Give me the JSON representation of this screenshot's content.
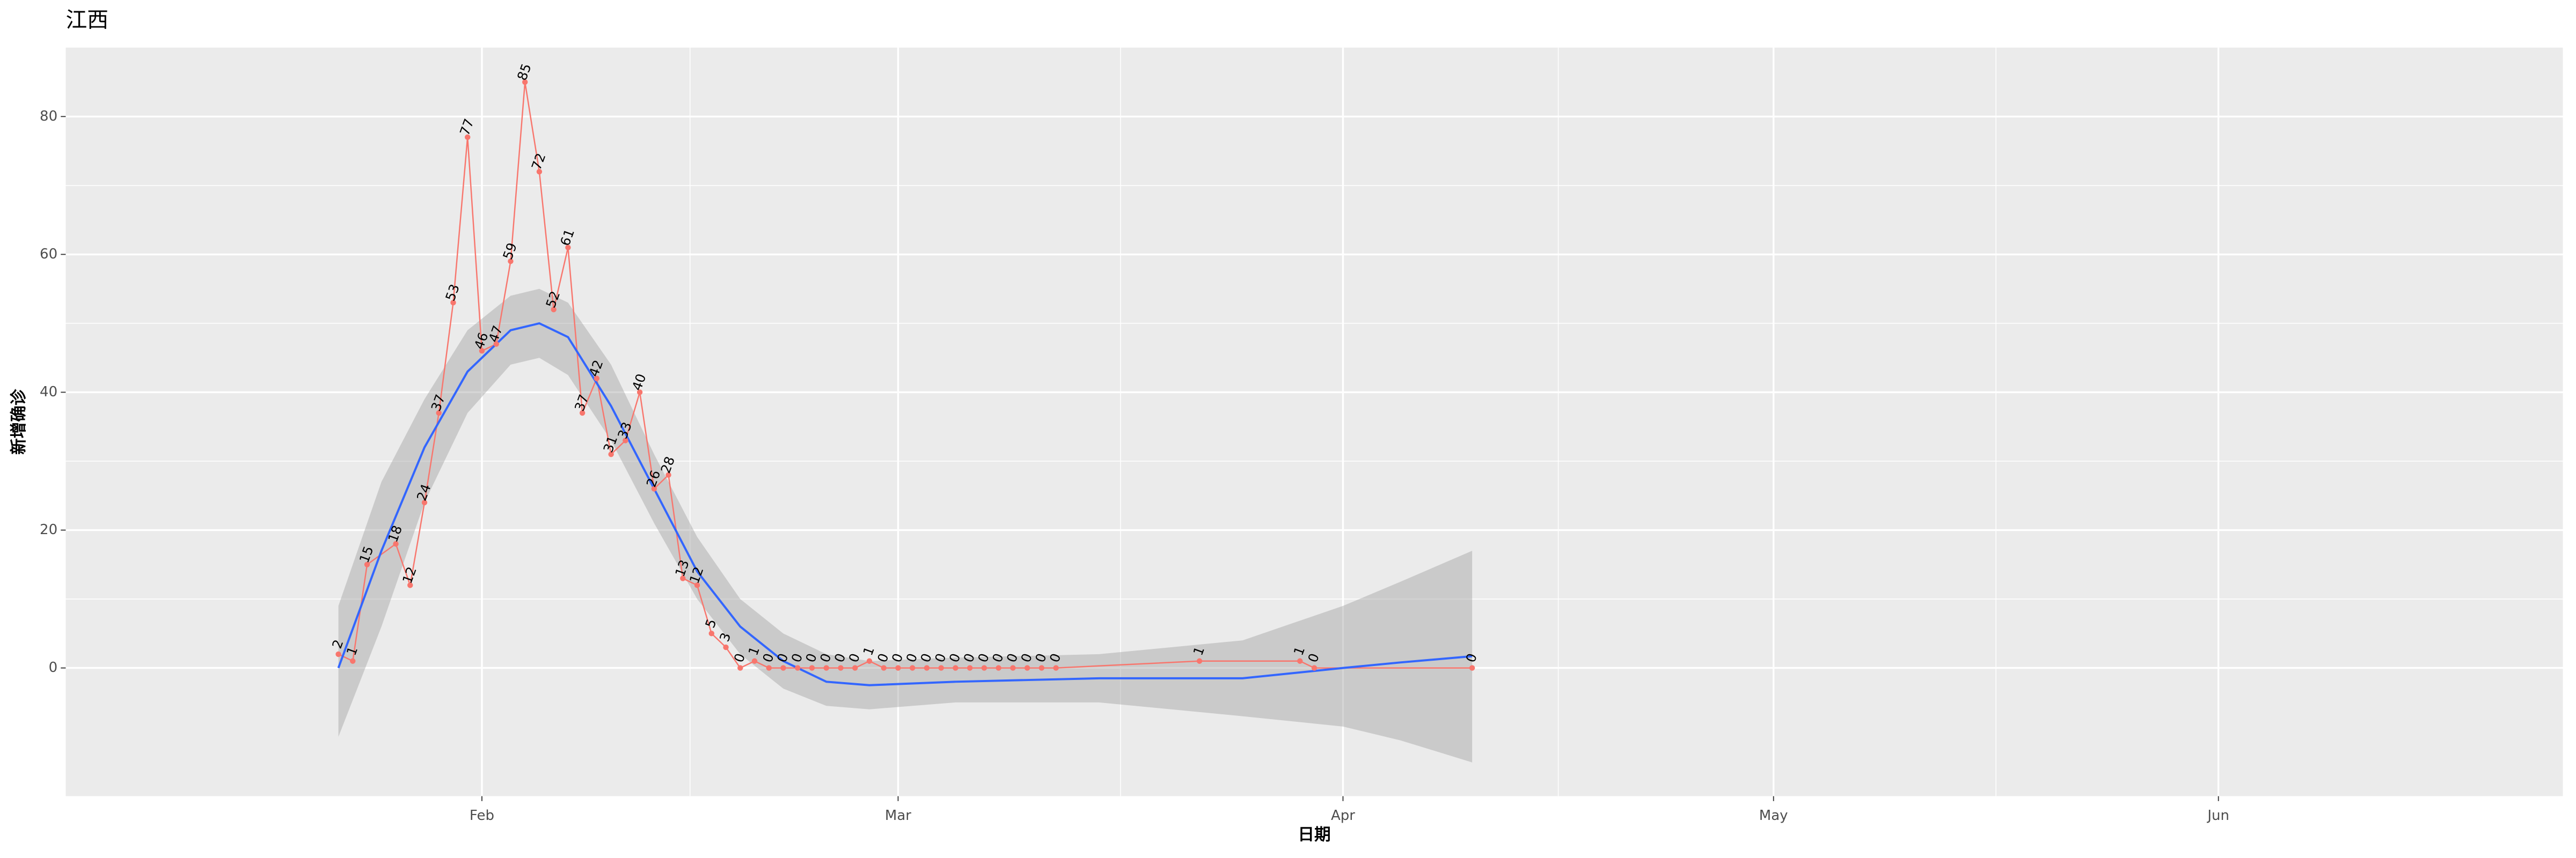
{
  "chart_data": {
    "type": "line",
    "title": "江西",
    "x_label": "日期",
    "y_label": "新增确诊",
    "x": [
      "01-22",
      "01-23",
      "01-24",
      "01-26",
      "01-27",
      "01-28",
      "01-29",
      "01-30",
      "01-31",
      "02-01",
      "02-02",
      "02-03",
      "02-04",
      "02-05",
      "02-06",
      "02-07",
      "02-08",
      "02-09",
      "02-10",
      "02-11",
      "02-12",
      "02-13",
      "02-14",
      "02-15",
      "02-16",
      "02-17",
      "02-18",
      "02-19",
      "02-20",
      "02-21",
      "02-22",
      "02-23",
      "02-24",
      "02-25",
      "02-26",
      "02-27",
      "02-28",
      "02-29",
      "03-01",
      "03-02",
      "03-03",
      "03-04",
      "03-05",
      "03-06",
      "03-07",
      "03-08",
      "03-09",
      "03-10",
      "03-11",
      "03-12",
      "03-22",
      "03-29",
      "03-30",
      "04-10"
    ],
    "values": [
      2,
      1,
      15,
      18,
      12,
      24,
      37,
      53,
      77,
      46,
      47,
      59,
      85,
      72,
      52,
      61,
      37,
      42,
      31,
      33,
      40,
      26,
      28,
      13,
      12,
      5,
      3,
      0,
      1,
      0,
      0,
      0,
      0,
      0,
      0,
      0,
      1,
      0,
      0,
      0,
      0,
      0,
      0,
      0,
      0,
      0,
      0,
      0,
      0,
      0,
      1,
      1,
      0,
      0
    ],
    "color": "#F8766D",
    "smooth": {
      "x": [
        "01-22",
        "01-25",
        "01-28",
        "01-31",
        "02-03",
        "02-05",
        "02-07",
        "02-10",
        "02-13",
        "02-16",
        "02-19",
        "02-22",
        "02-25",
        "02-28",
        "03-05",
        "03-15",
        "03-25",
        "04-01",
        "04-05",
        "04-10"
      ],
      "values": [
        0,
        17,
        32,
        43,
        49,
        50,
        48,
        38,
        26,
        14,
        6,
        1,
        -2,
        -2.5,
        -2,
        -1.5,
        -1.5,
        0,
        0.8,
        1.7
      ],
      "lower": [
        -10,
        6,
        24,
        37,
        44,
        45,
        42.5,
        33,
        21,
        10,
        2,
        -3,
        -5.5,
        -6,
        -5,
        -5,
        -7,
        -8.5,
        -10.5,
        -13.7
      ],
      "upper": [
        9,
        27,
        39,
        49,
        54,
        55,
        53,
        44,
        31,
        19,
        10,
        5,
        2,
        1,
        1.5,
        2,
        4,
        9,
        12.5,
        17
      ],
      "color": "#3366FF",
      "fill": "#999999"
    },
    "xlim": [
      "01-03",
      "06-25"
    ],
    "xticks": [
      {
        "value": "02-01",
        "label": "Feb"
      },
      {
        "value": "03-01",
        "label": "Mar"
      },
      {
        "value": "04-01",
        "label": "Apr"
      },
      {
        "value": "05-01",
        "label": "May"
      },
      {
        "value": "06-01",
        "label": "Jun"
      }
    ],
    "ylim": [
      -18.6,
      90
    ],
    "yticks": [
      0,
      20,
      40,
      60,
      80
    ],
    "grid": true
  }
}
